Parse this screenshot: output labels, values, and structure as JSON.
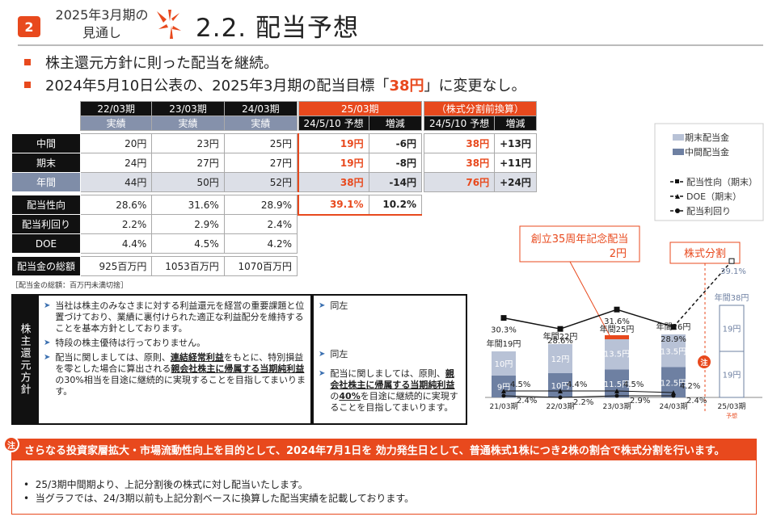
{
  "header": {
    "section_number": "2",
    "period_line1": "2025年3月期の",
    "period_line2": "見通し",
    "title": "2.2.  配当予想"
  },
  "bullets": [
    {
      "text": "株主還元方針に則った配当を継続。"
    },
    {
      "text_pre": "2024年5月10日公表の、2025年3月期の配当目標「",
      "highlight": "38円",
      "text_post": "」に変更なし。"
    }
  ],
  "table": {
    "periods": [
      "22/03期",
      "23/03期",
      "24/03期"
    ],
    "actual_label": "実績",
    "forecast_header": "25/03期",
    "forecast_sub": "24/5/10  予想",
    "change_label": "増減",
    "presplit_header": "（株式分割前換算）",
    "presplit_sub": "24/5/10  予想",
    "rows": [
      {
        "label": "中間",
        "v": [
          "20円",
          "23円",
          "25円"
        ],
        "f": "19円",
        "d": "-6円",
        "p": "38円",
        "pd": "+13円"
      },
      {
        "label": "期末",
        "v": [
          "24円",
          "27円",
          "27円"
        ],
        "f": "19円",
        "d": "-8円",
        "p": "38円",
        "pd": "+11円"
      },
      {
        "label": "年間",
        "v": [
          "44円",
          "50円",
          "52円"
        ],
        "f": "38円",
        "d": "-14円",
        "p": "76円",
        "pd": "+24円"
      }
    ],
    "ratios": [
      {
        "label": "配当性向",
        "v": [
          "28.6%",
          "31.6%",
          "28.9%"
        ],
        "f": "39.1%",
        "d": "10.2%"
      },
      {
        "label": "配当利回り",
        "v": [
          "2.2%",
          "2.9%",
          "2.4%"
        ]
      },
      {
        "label": "DOE",
        "v": [
          "4.4%",
          "4.5%",
          "4.2%"
        ]
      }
    ],
    "total": {
      "label": "配当金の総額",
      "v": [
        "925百万円",
        "1053百万円",
        "1070百万円"
      ]
    },
    "footnote": "［配当金の総額：百万円未満切捨］"
  },
  "policy": {
    "label": "株主還元方針",
    "left": [
      {
        "text": "当社は株主のみなさまに対する利益還元を経営の重要課題と位置づけており、業績に裏付けられた適正な利益配分を維持することを基本方針としております。"
      },
      {
        "text": "特段の株主優待は行っておりません。"
      },
      {
        "p1": "配当に関しましては、原則、",
        "b1": "連結経常利益",
        "p2": "をもとに、特別損益を零とした場合に算出される",
        "b2": "親会社株主に帰属する当期純利益",
        "p3": "の30%相当を目途に継続的に実現することを目指してまいります。"
      }
    ],
    "right": [
      {
        "text": "同左"
      },
      {
        "text": "同左"
      },
      {
        "p1": "配当に関しましては、原則、",
        "b1": "親会社株主に帰属する当期純利益",
        "p2": "の",
        "b2": "40%",
        "p3": "を目途に継続的に実現することを目指してまいります。"
      }
    ]
  },
  "notice": {
    "badge": "注",
    "pre": "さらなる投資家層拡大・市場流動性向上を目的として、",
    "date": "2024年7月1日",
    "mid": "を  効力発生日として、",
    "post": "普通株式1株につき2株の割合で株式分割を行います。",
    "lines": [
      "25/3期中間期より、上記分割後の株式に対し配当いたします。",
      "当グラフでは、24/3期以前も上記分割ベースに換算した配当実績を記載しております。"
    ]
  },
  "chart_data": {
    "type": "bar",
    "categories": [
      "21/03期",
      "22/03期",
      "23/03期",
      "24/03期",
      "25/03期"
    ],
    "forecast_tag": "予想",
    "series": [
      {
        "name": "期末配当金",
        "values": [
          10,
          12,
          13.5,
          13.5,
          19
        ],
        "labels": [
          "10円",
          "12円",
          "13.5円",
          "13.5円",
          "19円"
        ]
      },
      {
        "name": "中間配当金",
        "values": [
          9,
          10,
          11.5,
          12.5,
          19
        ],
        "labels": [
          "9円",
          "10円",
          "11.5円",
          "12.5円",
          "19円"
        ]
      }
    ],
    "annual_labels": [
      "年間19円",
      "年間22円",
      "年間25円",
      "年間26円",
      "年間38円"
    ],
    "payout_ratio": {
      "name": "配当性向（期末）",
      "values": [
        30.3,
        28.6,
        31.6,
        28.9,
        39.1
      ],
      "labels": [
        "30.3%",
        "28.6%",
        "31.6%",
        "28.9%",
        "39.1%"
      ]
    },
    "doe": {
      "name": "DOE（期末）",
      "values": [
        4.5,
        4.4,
        4.5,
        4.2
      ],
      "labels": [
        "4.5%",
        "4.4%",
        "4.5%",
        "4.2%"
      ]
    },
    "yield": {
      "name": "配当利回り",
      "values": [
        2.4,
        2.2,
        2.9,
        2.4
      ],
      "labels": [
        "2.4%",
        "2.2%",
        "2.9%",
        "2.4%"
      ]
    },
    "annotations": {
      "anniv_line1": "創立35周年記念配当",
      "anniv_line2": "2円",
      "split": "株式分割",
      "note_badge": "注"
    },
    "colors": {
      "period_end": "#b8c2d6",
      "interim": "#6e80a2",
      "accent": "#e8491d"
    }
  }
}
